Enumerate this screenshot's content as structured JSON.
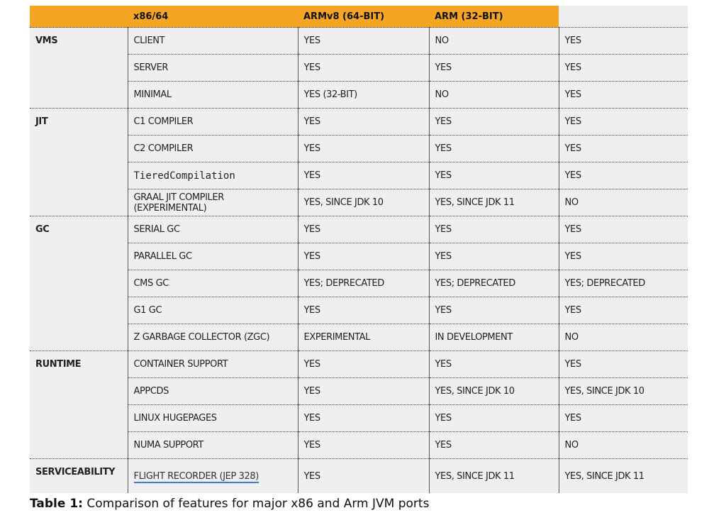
{
  "table": {
    "columns": [
      "x86/64",
      "ARMv8 (64-BIT)",
      "ARM (32-BIT)"
    ],
    "groups": [
      {
        "name": "VMS",
        "rows": [
          [
            "CLIENT",
            "YES",
            "NO",
            "YES"
          ],
          [
            "SERVER",
            "YES",
            "YES",
            "YES"
          ],
          [
            "MINIMAL",
            "YES (32-BIT)",
            "NO",
            "YES"
          ]
        ]
      },
      {
        "name": "JIT",
        "rows": [
          [
            "C1 COMPILER",
            "YES",
            "YES",
            "YES"
          ],
          [
            "C2 COMPILER",
            "YES",
            "YES",
            "YES"
          ],
          [
            "TieredCompilation",
            "YES",
            "YES",
            "YES"
          ],
          [
            "GRAAL JIT COMPILER (EXPERIMENTAL)",
            "YES, SINCE JDK 10",
            "YES, SINCE JDK 11",
            "NO"
          ]
        ]
      },
      {
        "name": "GC",
        "rows": [
          [
            "SERIAL GC",
            "YES",
            "YES",
            "YES"
          ],
          [
            "PARALLEL GC",
            "YES",
            "YES",
            "YES"
          ],
          [
            "CMS GC",
            "YES; DEPRECATED",
            "YES; DEPRECATED",
            "YES; DEPRECATED"
          ],
          [
            "G1 GC",
            "YES",
            "YES",
            "YES"
          ],
          [
            "Z GARBAGE COLLECTOR (ZGC)",
            "EXPERIMENTAL",
            "IN DEVELOPMENT",
            "NO"
          ]
        ]
      },
      {
        "name": "RUNTIME",
        "rows": [
          [
            "CONTAINER SUPPORT",
            "YES",
            "YES",
            "YES"
          ],
          [
            "APPCDS",
            "YES",
            "YES, SINCE JDK 10",
            "YES, SINCE JDK 10"
          ],
          [
            "LINUX HUGEPAGES",
            "YES",
            "YES",
            "YES"
          ],
          [
            "NUMA SUPPORT",
            "YES",
            "YES",
            "NO"
          ]
        ]
      },
      {
        "name": "SERVICEABILITY",
        "rows": [
          [
            "FLIGHT RECORDER (JEP 328)",
            "YES",
            "YES, SINCE JDK 11",
            "YES, SINCE JDK 11"
          ]
        ]
      }
    ]
  },
  "caption": {
    "label": "Table 1:",
    "text": "Comparison of features for major x86 and Arm JVM ports"
  }
}
